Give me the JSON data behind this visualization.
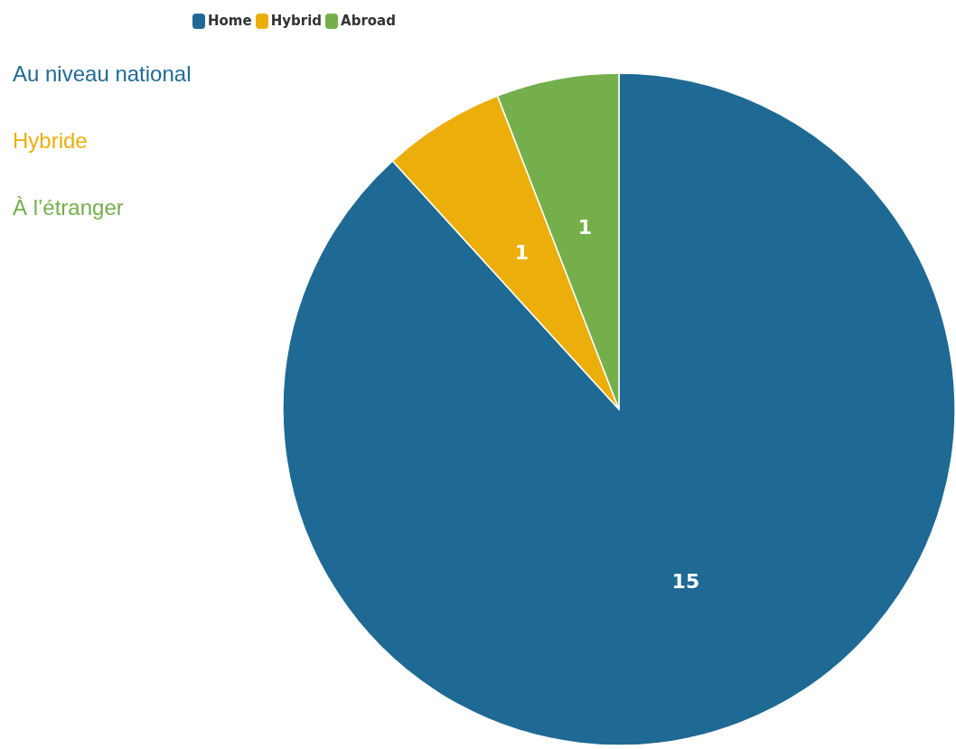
{
  "chart_data": {
    "type": "pie",
    "categories": [
      "Home",
      "Hybrid",
      "Abroad"
    ],
    "values": [
      15,
      1,
      1
    ],
    "colors": [
      "#1f6a94",
      "#ecae0a",
      "#74af4b"
    ],
    "legend": "top left",
    "data_labels": true,
    "annotations": [
      "Au niveau national",
      "Hybride",
      "À l’étranger"
    ]
  }
}
